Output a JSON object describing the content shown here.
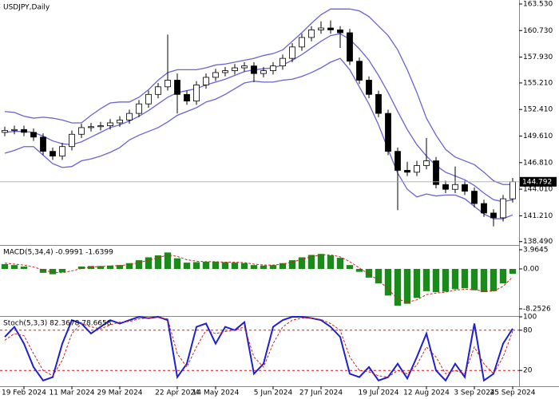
{
  "chart_data": [
    {
      "type": "candlestick",
      "title": "USDJPY,Daily",
      "categories": [
        null,
        null,
        "19 Feb 2024",
        null,
        null,
        null,
        null,
        "11 Mar 2024",
        null,
        null,
        null,
        null,
        "29 Mar 2024",
        null,
        null,
        null,
        null,
        null,
        "22 Apr 2024",
        null,
        null,
        null,
        "14 May 2024",
        null,
        null,
        null,
        null,
        null,
        "5 Jun 2024",
        null,
        null,
        null,
        null,
        "27 Jun 2024",
        null,
        null,
        null,
        null,
        null,
        "19 Jul 2024",
        null,
        null,
        null,
        null,
        "12 Aug 2024",
        null,
        null,
        null,
        null,
        "3 Sep 2024",
        null,
        null,
        null,
        "25 Sep 2024"
      ],
      "ohlc": [
        [
          150.0,
          150.6,
          149.6,
          150.2
        ],
        [
          150.2,
          150.7,
          149.8,
          150.3
        ],
        [
          150.3,
          150.7,
          149.6,
          150.0
        ],
        [
          150.0,
          150.4,
          149.1,
          149.5
        ],
        [
          149.5,
          149.9,
          147.6,
          148.0
        ],
        [
          148.0,
          148.4,
          147.1,
          147.5
        ],
        [
          147.5,
          148.9,
          147.1,
          148.5
        ],
        [
          148.5,
          150.2,
          148.1,
          149.8
        ],
        [
          149.8,
          150.9,
          149.4,
          150.5
        ],
        [
          150.5,
          151.0,
          150.1,
          150.6
        ],
        [
          150.6,
          151.1,
          150.2,
          150.7
        ],
        [
          150.7,
          151.4,
          150.3,
          151.0
        ],
        [
          151.0,
          151.7,
          150.6,
          151.3
        ],
        [
          151.3,
          152.4,
          150.9,
          152.0
        ],
        [
          152.0,
          153.4,
          151.6,
          153.0
        ],
        [
          153.0,
          154.4,
          152.6,
          154.0
        ],
        [
          154.0,
          155.2,
          153.6,
          154.8
        ],
        [
          154.8,
          160.3,
          154.4,
          155.5
        ],
        [
          155.5,
          156.2,
          152.0,
          154.0
        ],
        [
          154.0,
          154.4,
          152.9,
          153.3
        ],
        [
          153.3,
          155.4,
          152.9,
          155.0
        ],
        [
          155.0,
          156.2,
          154.6,
          155.8
        ],
        [
          155.8,
          156.7,
          155.4,
          156.3
        ],
        [
          156.3,
          156.9,
          155.9,
          156.5
        ],
        [
          156.5,
          157.2,
          156.1,
          156.8
        ],
        [
          156.8,
          157.4,
          156.4,
          157.0
        ],
        [
          157.0,
          157.4,
          155.3,
          156.2
        ],
        [
          156.2,
          156.9,
          155.8,
          156.5
        ],
        [
          156.5,
          157.4,
          156.1,
          157.0
        ],
        [
          157.0,
          158.2,
          156.6,
          157.8
        ],
        [
          157.8,
          159.4,
          157.4,
          159.0
        ],
        [
          159.0,
          160.4,
          158.6,
          160.0
        ],
        [
          160.0,
          161.2,
          159.6,
          160.8
        ],
        [
          160.8,
          161.7,
          160.4,
          161.0
        ],
        [
          161.0,
          161.8,
          160.4,
          160.8
        ],
        [
          160.8,
          161.2,
          158.9,
          160.5
        ],
        [
          160.5,
          160.9,
          157.1,
          157.5
        ],
        [
          157.5,
          157.9,
          155.1,
          155.5
        ],
        [
          155.5,
          155.9,
          153.6,
          154.0
        ],
        [
          154.0,
          154.4,
          151.6,
          152.0
        ],
        [
          152.0,
          152.4,
          147.6,
          148.0
        ],
        [
          148.0,
          148.4,
          141.8,
          146.0
        ],
        [
          146.0,
          146.9,
          145.4,
          145.8
        ],
        [
          145.8,
          147.0,
          145.4,
          146.5
        ],
        [
          146.5,
          149.4,
          146.1,
          147.0
        ],
        [
          147.0,
          147.4,
          144.1,
          144.5
        ],
        [
          144.5,
          144.9,
          143.6,
          144.0
        ],
        [
          144.0,
          146.4,
          143.6,
          144.5
        ],
        [
          144.5,
          144.9,
          143.4,
          143.8
        ],
        [
          143.8,
          144.2,
          142.1,
          142.5
        ],
        [
          142.5,
          142.9,
          141.1,
          141.5
        ],
        [
          141.5,
          141.9,
          140.1,
          141.0
        ],
        [
          141.0,
          143.4,
          140.6,
          143.0
        ],
        [
          143.0,
          145.2,
          142.6,
          144.8
        ]
      ],
      "overlays": [
        {
          "color": "#6a62d8",
          "values": [
            152.2,
            152.1,
            151.7,
            151.5,
            151.6,
            151.5,
            151.3,
            151.0,
            151.0,
            151.8,
            152.5,
            153.1,
            153.2,
            153.2,
            153.7,
            154.5,
            155.5,
            156.3,
            156.6,
            156.6,
            156.6,
            156.8,
            157.1,
            157.2,
            157.4,
            157.6,
            157.8,
            158.1,
            158.3,
            158.7,
            159.6,
            160.5,
            161.5,
            162.4,
            163.0,
            163.0,
            163.0,
            162.8,
            162.2,
            161.2,
            160.2,
            158.7,
            156.6,
            154.2,
            151.5,
            149.7,
            148.2,
            147.4,
            147.0,
            146.6,
            145.8,
            144.9,
            144.5,
            144.5
          ]
        },
        {
          "color": "#6a62d8",
          "values": [
            150.0,
            150.1,
            150.1,
            150.0,
            149.6,
            149.1,
            148.8,
            148.7,
            149.0,
            149.5,
            150.0,
            150.5,
            150.8,
            151.2,
            151.7,
            152.3,
            153.0,
            153.7,
            154.2,
            154.4,
            154.6,
            155.0,
            155.3,
            155.6,
            156.0,
            156.4,
            156.6,
            156.7,
            156.8,
            157.1,
            157.6,
            158.2,
            158.9,
            159.6,
            160.2,
            160.4,
            159.8,
            158.8,
            157.6,
            156.0,
            154.2,
            152.2,
            150.3,
            148.7,
            147.5,
            146.5,
            145.8,
            145.4,
            145.0,
            144.4,
            143.6,
            142.9,
            142.7,
            142.9
          ]
        },
        {
          "color": "#6a62d8",
          "values": [
            147.8,
            148.1,
            148.5,
            148.5,
            147.6,
            146.7,
            146.3,
            146.4,
            147.0,
            147.2,
            147.5,
            147.9,
            148.4,
            149.2,
            149.7,
            150.1,
            150.5,
            151.1,
            151.8,
            152.2,
            152.6,
            153.2,
            153.5,
            154.0,
            154.6,
            155.2,
            155.4,
            155.3,
            155.3,
            155.5,
            155.6,
            155.9,
            156.3,
            156.8,
            157.4,
            157.8,
            156.6,
            154.8,
            153.0,
            150.8,
            148.2,
            145.7,
            144.0,
            143.2,
            143.5,
            143.3,
            143.4,
            143.4,
            143.0,
            142.2,
            141.4,
            140.9,
            140.9,
            141.3
          ]
        }
      ],
      "ylim": [
        138.3,
        163.95
      ],
      "yticks": [
        {
          "value": 163.53,
          "label": "163.530"
        },
        {
          "value": 160.73,
          "label": "160.730"
        },
        {
          "value": 157.93,
          "label": "157.930"
        },
        {
          "value": 155.21,
          "label": "155.210"
        },
        {
          "value": 152.41,
          "label": "152.410"
        },
        {
          "value": 149.61,
          "label": "149.610"
        },
        {
          "value": 146.81,
          "label": "146.810"
        },
        {
          "value": 144.01,
          "label": "144.010"
        },
        {
          "value": 141.21,
          "label": "141.210"
        },
        {
          "value": 138.49,
          "label": "138.490"
        }
      ],
      "last_price": {
        "value": 144.792,
        "label": "144.792"
      }
    },
    {
      "type": "macd",
      "title": "MACD(5,34,4) -0.9991 -1.6399",
      "color": "#1a8a1a",
      "values": [
        1.0,
        0.8,
        0.5,
        0.0,
        -0.8,
        -1.1,
        -0.7,
        0.0,
        0.5,
        0.6,
        0.6,
        0.7,
        0.8,
        1.2,
        1.8,
        2.4,
        2.8,
        3.4,
        2.2,
        1.3,
        1.4,
        1.5,
        1.5,
        1.4,
        1.3,
        1.2,
        0.8,
        0.7,
        0.8,
        1.2,
        1.8,
        2.4,
        2.9,
        3.1,
        2.8,
        2.3,
        0.8,
        -0.6,
        -1.8,
        -3.0,
        -5.5,
        -7.6,
        -7.2,
        -6.0,
        -4.6,
        -4.8,
        -4.7,
        -4.2,
        -4.0,
        -4.4,
        -4.8,
        -4.6,
        -3.0,
        -0.9991
      ],
      "signal": {
        "color": "#d02020",
        "values": [
          1.2,
          1.0,
          0.8,
          0.4,
          -0.2,
          -0.7,
          -0.8,
          -0.4,
          0.1,
          0.4,
          0.5,
          0.6,
          0.7,
          0.9,
          1.3,
          1.8,
          2.3,
          2.9,
          2.6,
          1.9,
          1.6,
          1.5,
          1.5,
          1.4,
          1.4,
          1.3,
          1.0,
          0.8,
          0.8,
          1.0,
          1.4,
          2.0,
          2.5,
          2.9,
          2.9,
          2.5,
          1.5,
          0.2,
          -1.1,
          -2.3,
          -4.2,
          -6.2,
          -6.9,
          -6.4,
          -5.3,
          -5.0,
          -4.8,
          -4.4,
          -4.2,
          -4.3,
          -4.6,
          -4.6,
          -3.6,
          -1.6399
        ]
      },
      "ylim": [
        -9.57,
        4.62
      ],
      "yticks": [
        3.9645,
        {
          "value": 0,
          "label": "0.00"
        },
        -8.2526
      ]
    },
    {
      "type": "line",
      "title": "Stoch(5,3,3) 82.3678 78.6658",
      "series": [
        {
          "color": "#1f1fd0",
          "dashed": false,
          "values": [
            70,
            85,
            60,
            25,
            5,
            10,
            60,
            95,
            90,
            75,
            85,
            95,
            90,
            95,
            100,
            98,
            100,
            95,
            10,
            30,
            85,
            90,
            60,
            85,
            80,
            92,
            15,
            30,
            85,
            95,
            100,
            100,
            98,
            95,
            85,
            70,
            15,
            10,
            25,
            5,
            10,
            30,
            8,
            40,
            75,
            20,
            5,
            30,
            10,
            90,
            5,
            15,
            60,
            82.3678
          ]
        },
        {
          "color": "#d02020",
          "dashed": true,
          "values": [
            65,
            75,
            72,
            45,
            20,
            12,
            35,
            75,
            90,
            85,
            82,
            88,
            92,
            93,
            97,
            98,
            99,
            97,
            45,
            25,
            55,
            80,
            75,
            78,
            80,
            85,
            40,
            25,
            60,
            85,
            95,
            98,
            98,
            96,
            90,
            80,
            40,
            20,
            18,
            12,
            10,
            20,
            15,
            28,
            55,
            40,
            15,
            20,
            15,
            55,
            30,
            15,
            40,
            78.6658
          ]
        }
      ],
      "ylim": [
        0,
        100
      ],
      "yticks": [
        100,
        80,
        20
      ],
      "levels": [
        80,
        20
      ],
      "level_color": "#c02020"
    }
  ]
}
